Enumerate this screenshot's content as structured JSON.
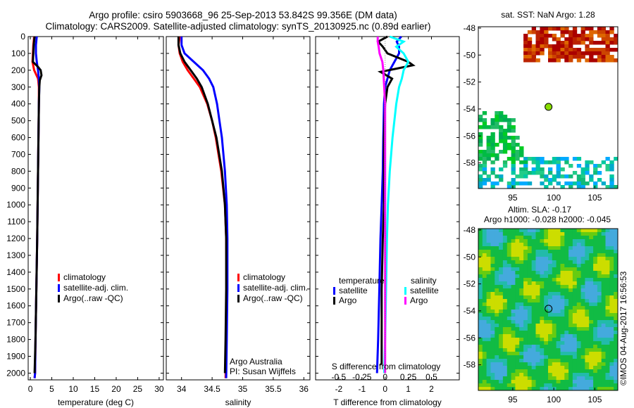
{
  "title_line1": "Argo profile: csiro 5903668_96 25-Sep-2013 53.842S 99.356E (DM data)",
  "title_line2": "Climatology: CARS2009. Satellite-adjusted climatology: synTS_20130925.nc (0.89d earlier)",
  "colors": {
    "climatology": "#ff0000",
    "satellite": "#0000ff",
    "argo": "#000000",
    "sat_salt": "#00ffff",
    "argo_salt": "#ff00ff"
  },
  "chart_data": [
    {
      "type": "line",
      "id": "temperature",
      "xlabel": "temperature (deg C)",
      "ylabel": "",
      "xlim": [
        -0.5,
        31
      ],
      "ylim": [
        2040,
        0
      ],
      "xticks": [
        0,
        5,
        10,
        15,
        20,
        25,
        30
      ],
      "yticks": [
        0,
        100,
        200,
        300,
        400,
        500,
        600,
        700,
        800,
        900,
        1000,
        1100,
        1200,
        1300,
        1400,
        1500,
        1600,
        1700,
        1800,
        1900,
        2000
      ],
      "legend": [
        "climatology",
        "satellite-adj. clim.",
        "Argo(..raw -QC)"
      ],
      "legend_position": "lower-center",
      "series": [
        {
          "name": "climatology",
          "color": "#ff0000",
          "depth": [
            0,
            50,
            100,
            150,
            200,
            250,
            300,
            400,
            600,
            800,
            1000,
            1200,
            1500,
            1800,
            2000,
            2030
          ],
          "values": [
            0.9,
            0.7,
            0.6,
            0.5,
            0.9,
            1.8,
            2.0,
            2.0,
            1.9,
            1.8,
            1.7,
            1.6,
            1.4,
            1.2,
            1.1,
            1.0
          ]
        },
        {
          "name": "satellite-adj. clim.",
          "color": "#0000ff",
          "depth": [
            0,
            50,
            100,
            150,
            200,
            250,
            300,
            400,
            600,
            800,
            1000,
            1200,
            1500,
            1800,
            2000,
            2030
          ],
          "values": [
            1.5,
            1.3,
            1.3,
            1.5,
            1.8,
            2.0,
            2.1,
            2.0,
            1.9,
            1.8,
            1.7,
            1.6,
            1.4,
            1.2,
            1.1,
            1.0
          ]
        },
        {
          "name": "Argo(..raw -QC)",
          "color": "#000000",
          "depth": [
            0,
            50,
            100,
            150,
            180,
            200,
            230,
            260,
            300,
            400,
            600,
            800,
            1000,
            1200,
            1500,
            1800,
            2000
          ],
          "values": [
            1.0,
            0.8,
            0.7,
            0.6,
            1.8,
            2.4,
            2.6,
            2.2,
            2.1,
            2.0,
            1.9,
            1.8,
            1.7,
            1.6,
            1.4,
            1.2,
            1.0
          ]
        }
      ]
    },
    {
      "type": "line",
      "id": "salinity",
      "xlabel": "salinity",
      "xlim": [
        33.75,
        36.1
      ],
      "ylim": [
        2040,
        0
      ],
      "xticks": [
        34,
        34.5,
        35,
        35.5,
        36
      ],
      "legend": [
        "climatology",
        "satellite-adj. clim.",
        "Argo(..raw -QC)"
      ],
      "legend_position": "lower-right",
      "series": [
        {
          "name": "climatology",
          "color": "#ff0000",
          "depth": [
            0,
            50,
            100,
            150,
            200,
            250,
            300,
            400,
            500,
            600,
            800,
            1000,
            1200,
            1500,
            1800,
            2030
          ],
          "values": [
            33.97,
            33.95,
            33.97,
            34.02,
            34.1,
            34.2,
            34.3,
            34.42,
            34.5,
            34.56,
            34.65,
            34.71,
            34.73,
            34.74,
            34.73,
            34.72
          ]
        },
        {
          "name": "satellite-adj. clim.",
          "color": "#0000ff",
          "depth": [
            0,
            50,
            100,
            150,
            200,
            250,
            300,
            400,
            500,
            600,
            800,
            1000,
            1200,
            1500,
            1800,
            2030
          ],
          "values": [
            34.0,
            34.0,
            34.05,
            34.2,
            34.35,
            34.45,
            34.52,
            34.58,
            34.62,
            34.66,
            34.71,
            34.74,
            34.75,
            34.75,
            34.74,
            34.73
          ]
        },
        {
          "name": "Argo(..raw -QC)",
          "color": "#000000",
          "depth": [
            0,
            50,
            100,
            150,
            200,
            250,
            300,
            400,
            500,
            600,
            800,
            1000,
            1200,
            1500,
            1800,
            2000
          ],
          "values": [
            33.95,
            33.95,
            33.98,
            34.05,
            34.15,
            34.25,
            34.33,
            34.43,
            34.5,
            34.57,
            34.66,
            34.71,
            34.73,
            34.73,
            34.72,
            34.71
          ]
        }
      ],
      "annotation": [
        "Argo Australia",
        "PI: Susan Wijffels"
      ]
    },
    {
      "type": "line",
      "id": "difference",
      "xlabel": "T difference from climatology",
      "xlabel2": "S difference from climatology",
      "xlim": [
        -3,
        3.2
      ],
      "ylim": [
        2040,
        0
      ],
      "xticks": [
        -2,
        -1,
        0,
        1,
        2
      ],
      "xticks2": [
        -0.5,
        -0.25,
        0,
        0.25,
        0.5
      ],
      "legend_temperature": {
        "title": "temperature",
        "items": [
          "satellite",
          "Argo"
        ]
      },
      "legend_salinity": {
        "title": "salinity",
        "items": [
          "satellite",
          "Argo"
        ]
      },
      "series": [
        {
          "name": "temperature satellite",
          "color": "#0000ff",
          "unit": "T",
          "depth": [
            0,
            30,
            60,
            100,
            150,
            200,
            250,
            300,
            400,
            600,
            800,
            1000,
            1200,
            1500,
            1800,
            2000
          ],
          "values": [
            0.7,
            0.5,
            0.6,
            0.6,
            0.4,
            0.2,
            0.1,
            0.0,
            -0.05,
            -0.08,
            -0.1,
            -0.15,
            -0.2,
            -0.25,
            -0.3,
            -0.35
          ]
        },
        {
          "name": "temperature Argo",
          "color": "#000000",
          "unit": "T",
          "depth": [
            0,
            30,
            60,
            100,
            150,
            170,
            190,
            210,
            250,
            300,
            400,
            600,
            800,
            1000,
            1200,
            1500,
            1800,
            1950
          ],
          "values": [
            0.1,
            -0.3,
            -0.1,
            0.1,
            1.0,
            1.2,
            0.5,
            -0.2,
            0.3,
            0.1,
            0.0,
            -0.05,
            -0.05,
            -0.05,
            -0.1,
            -0.15,
            -0.15,
            -0.15
          ]
        },
        {
          "name": "salinity satellite",
          "color": "#00ffff",
          "unit": "S",
          "depth": [
            0,
            30,
            60,
            100,
            150,
            200,
            250,
            300,
            400,
            600,
            800,
            1000,
            1200,
            1500,
            1800,
            2000
          ],
          "values": [
            0.05,
            0.2,
            0.12,
            0.2,
            0.25,
            0.2,
            0.18,
            0.15,
            0.12,
            0.08,
            0.05,
            0.03,
            0.02,
            0.01,
            0.0,
            -0.01
          ]
        },
        {
          "name": "salinity Argo",
          "color": "#ff00ff",
          "unit": "S",
          "depth": [
            0,
            30,
            60,
            100,
            150,
            200,
            300,
            400,
            600,
            800,
            1000,
            1200,
            1500,
            1800,
            2000
          ],
          "values": [
            -0.08,
            -0.08,
            -0.07,
            -0.06,
            -0.03,
            -0.02,
            -0.01,
            0.0,
            0.0,
            0.0,
            0.0,
            0.0,
            0.0,
            0.0,
            0.0
          ]
        }
      ]
    },
    {
      "type": "heatmap",
      "id": "sst_map",
      "title": "sat. SST: NaN Argo: 1.28",
      "xlim": [
        90.8,
        107.8
      ],
      "ylim": [
        -59.9,
        -47.9
      ],
      "xticks": [
        95,
        100,
        105
      ],
      "yticks": [
        -48,
        -50,
        -52,
        -54,
        -56,
        -58
      ],
      "profile_location": {
        "lon": 99.356,
        "lat": -53.842
      }
    },
    {
      "type": "heatmap",
      "id": "sla_map",
      "title": "Altim. SLA: -0.17",
      "subtitle": "Argo h1000: -0.028 h2000: -0.045",
      "xlim": [
        90.8,
        107.8
      ],
      "ylim": [
        -59.9,
        -47.9
      ],
      "xticks": [
        95,
        100,
        105
      ],
      "yticks": [
        -48,
        -50,
        -52,
        -54,
        -56,
        -58
      ],
      "profile_location": {
        "lon": 99.356,
        "lat": -53.842
      }
    }
  ],
  "credit": "©IMOS 04-Aug-2017 16:56:53"
}
